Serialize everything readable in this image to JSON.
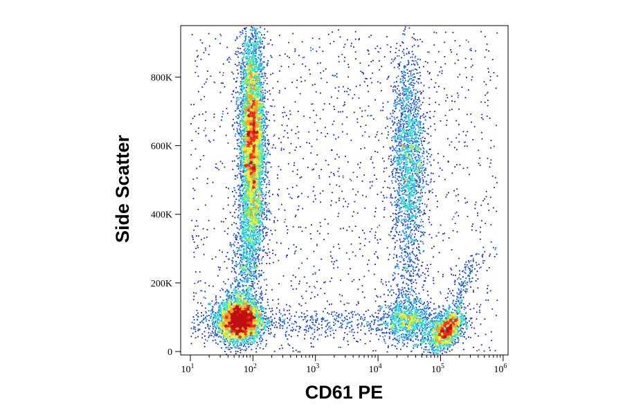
{
  "chart_data": {
    "type": "scatter",
    "subtype": "flow-cytometry-density-dot-plot",
    "title": "",
    "xlabel": "CD61 PE",
    "ylabel": "Side Scatter",
    "x_scale": "log",
    "y_scale": "linear",
    "xlim": [
      7,
      1200000
    ],
    "ylim": [
      -10000,
      950000
    ],
    "x_ticks": [
      {
        "value": 10,
        "base": "10",
        "exp": "1"
      },
      {
        "value": 100,
        "base": "10",
        "exp": "2"
      },
      {
        "value": 1000,
        "base": "10",
        "exp": "3"
      },
      {
        "value": 10000,
        "base": "10",
        "exp": "4"
      },
      {
        "value": 100000,
        "base": "10",
        "exp": "5"
      },
      {
        "value": 1000000,
        "base": "10",
        "exp": "6"
      }
    ],
    "y_ticks": [
      {
        "value": 0,
        "label": "0"
      },
      {
        "value": 200000,
        "label": "200K"
      },
      {
        "value": 400000,
        "label": "400K"
      },
      {
        "value": 600000,
        "label": "600K"
      },
      {
        "value": 800000,
        "label": "800K"
      }
    ],
    "grid": false,
    "legend": "none",
    "density_colors": [
      "#0a1ea8",
      "#1e5fd6",
      "#18b4ee",
      "#2fe0c0",
      "#9be84a",
      "#f2e830",
      "#f5a020",
      "#e83020",
      "#c01010"
    ],
    "populations": [
      {
        "x_center": 60,
        "y_center": 90000,
        "count": 3400
      },
      {
        "x_center": 95,
        "y_center": 620000,
        "count": 5200
      },
      {
        "x_center": 30000,
        "y_center": 580000,
        "count": 1800
      },
      {
        "x_center": 30000,
        "y_center": 90000,
        "count": 900
      },
      {
        "x_center": 120000,
        "y_center": 60000,
        "count": 1300
      }
    ]
  }
}
